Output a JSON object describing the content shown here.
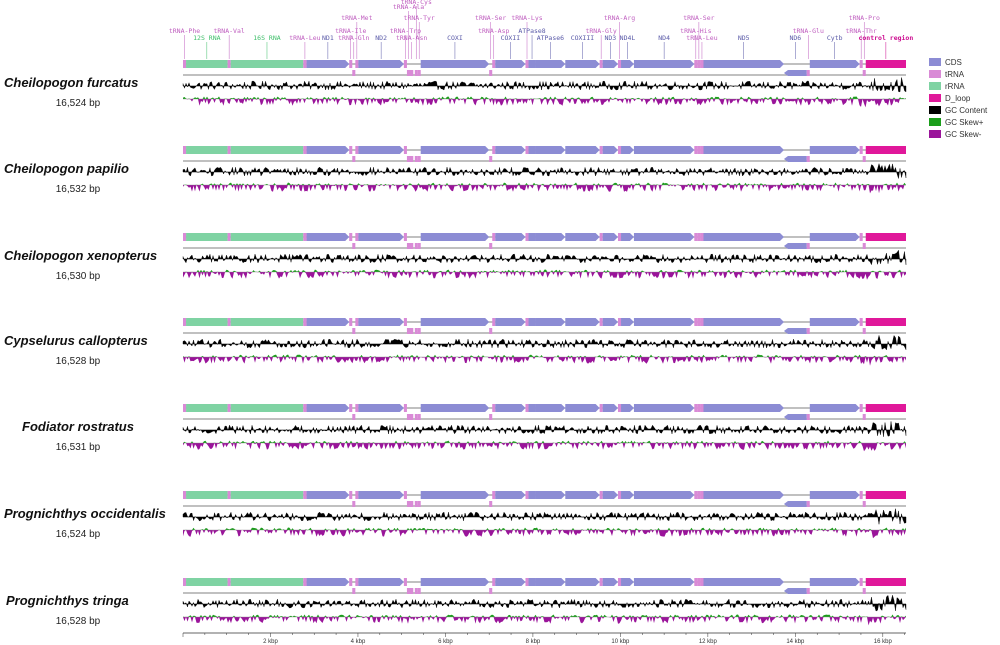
{
  "colors": {
    "cds": "#8c8cd4",
    "trna": "#d98ad6",
    "rrna": "#7fd3a3",
    "dloop": "#e0189a",
    "gc_content": "#000000",
    "gc_skew_plus": "#1a9e1a",
    "gc_skew_minus": "#9a149a",
    "trna_text": "#c060c0",
    "rrna_text": "#3fbf6a",
    "cds_text": "#5a5aa8",
    "dloop_text": "#cc0a8f"
  },
  "legend": [
    {
      "key": "cds",
      "label": "CDS"
    },
    {
      "key": "trna",
      "label": "tRNA"
    },
    {
      "key": "rrna",
      "label": "rRNA"
    },
    {
      "key": "dloop",
      "label": "D_loop"
    },
    {
      "key": "gc_content",
      "label": "GC Content"
    },
    {
      "key": "gc_skew_plus",
      "label": "GC Skew+"
    },
    {
      "key": "gc_skew_minus",
      "label": "GC Skew-"
    }
  ],
  "species": [
    {
      "name": "Cheilopogon furcatus",
      "length": "16,524 bp"
    },
    {
      "name": "Cheilopogon papilio",
      "length": "16,532 bp"
    },
    {
      "name": "Cheilopogon xenopterus",
      "length": "16,530 bp"
    },
    {
      "name": "Cypselurus callopterus",
      "length": "16,528 bp"
    },
    {
      "name": "Fodiator rostratus",
      "length": "16,531 bp"
    },
    {
      "name": "Prognichthys occidentalis",
      "length": "16,524 bp"
    },
    {
      "name": "Prognichthys tringa",
      "length": "16,528 bp"
    }
  ],
  "genome_length": 16530,
  "axis": {
    "ticks": [
      {
        "kb": 2,
        "label": "2 kbp"
      },
      {
        "kb": 4,
        "label": "4 kbp"
      },
      {
        "kb": 6,
        "label": "6 kbp"
      },
      {
        "kb": 8,
        "label": "8 kbp"
      },
      {
        "kb": 10,
        "label": "10 kbp"
      },
      {
        "kb": 12,
        "label": "12 kbp"
      },
      {
        "kb": 14,
        "label": "14 kbp"
      },
      {
        "kb": 16,
        "label": "16 kbp"
      }
    ]
  },
  "features": [
    {
      "name": "tRNA-Phe",
      "type": "trna",
      "start": 0,
      "end": 70,
      "strand": "+",
      "label_row": 1
    },
    {
      "name": "12S RNA",
      "type": "rrna",
      "start": 70,
      "end": 1020,
      "strand": "+",
      "label_row": 2
    },
    {
      "name": "tRNA-Val",
      "type": "trna",
      "start": 1020,
      "end": 1090,
      "strand": "+",
      "label_row": 1
    },
    {
      "name": "16S RNA",
      "type": "rrna",
      "start": 1090,
      "end": 2750,
      "strand": "+",
      "label_row": 2
    },
    {
      "name": "tRNA-Leu",
      "type": "trna",
      "start": 2750,
      "end": 2825,
      "strand": "+",
      "label_row": 2
    },
    {
      "name": "ND1",
      "type": "cds",
      "start": 2825,
      "end": 3800,
      "strand": "+",
      "label_row": 2
    },
    {
      "name": "tRNA-Ile",
      "type": "trna",
      "start": 3800,
      "end": 3870,
      "strand": "+",
      "label_row": 1
    },
    {
      "name": "tRNA-Gln",
      "type": "trna",
      "start": 3870,
      "end": 3940,
      "strand": "-",
      "label_row": 2
    },
    {
      "name": "tRNA-Met",
      "type": "trna",
      "start": 3940,
      "end": 4010,
      "strand": "+",
      "label_row": 0
    },
    {
      "name": "ND2",
      "type": "cds",
      "start": 4010,
      "end": 5050,
      "strand": "+",
      "label_row": 2
    },
    {
      "name": "tRNA-Trp",
      "type": "trna",
      "start": 5050,
      "end": 5120,
      "strand": "+",
      "label_row": 1
    },
    {
      "name": "tRNA-Ala",
      "type": "trna",
      "start": 5120,
      "end": 5190,
      "strand": "-",
      "label_row": -2
    },
    {
      "name": "tRNA-Asn",
      "type": "trna",
      "start": 5190,
      "end": 5265,
      "strand": "-",
      "label_row": 2
    },
    {
      "name": "tRNA-Cys",
      "type": "trna",
      "start": 5300,
      "end": 5365,
      "strand": "-",
      "label_row": -3
    },
    {
      "name": "tRNA-Tyr",
      "type": "trna",
      "start": 5365,
      "end": 5435,
      "strand": "-",
      "label_row": 0
    },
    {
      "name": "COXI",
      "type": "cds",
      "start": 5435,
      "end": 7000,
      "strand": "+",
      "label_row": 2
    },
    {
      "name": "tRNA-Ser",
      "type": "trna",
      "start": 7000,
      "end": 7070,
      "strand": "-",
      "label_row": 0
    },
    {
      "name": "tRNA-Asp",
      "type": "trna",
      "start": 7070,
      "end": 7140,
      "strand": "+",
      "label_row": 1
    },
    {
      "name": "COXII",
      "type": "cds",
      "start": 7140,
      "end": 7830,
      "strand": "+",
      "label_row": 2
    },
    {
      "name": "tRNA-Lys",
      "type": "trna",
      "start": 7830,
      "end": 7900,
      "strand": "+",
      "label_row": 0
    },
    {
      "name": "ATPase8",
      "type": "cds",
      "start": 7900,
      "end": 8060,
      "strand": "+",
      "label_row": 1
    },
    {
      "name": "ATPase6",
      "type": "cds",
      "start": 8060,
      "end": 8740,
      "strand": "+",
      "label_row": 2
    },
    {
      "name": "COXIII",
      "type": "cds",
      "start": 8740,
      "end": 9525,
      "strand": "+",
      "label_row": 2
    },
    {
      "name": "tRNA-Gly",
      "type": "trna",
      "start": 9525,
      "end": 9595,
      "strand": "+",
      "label_row": 1
    },
    {
      "name": "ND3",
      "type": "cds",
      "start": 9595,
      "end": 9945,
      "strand": "+",
      "label_row": 2
    },
    {
      "name": "tRNA-Arg",
      "type": "trna",
      "start": 9945,
      "end": 10015,
      "strand": "+",
      "label_row": 0
    },
    {
      "name": "ND4L",
      "type": "cds",
      "start": 10015,
      "end": 10310,
      "strand": "+",
      "label_row": 2
    },
    {
      "name": "ND4",
      "type": "cds",
      "start": 10310,
      "end": 11690,
      "strand": "+",
      "label_row": 2
    },
    {
      "name": "tRNA-His",
      "type": "trna",
      "start": 11690,
      "end": 11760,
      "strand": "+",
      "label_row": 1
    },
    {
      "name": "tRNA-Ser",
      "type": "trna",
      "start": 11760,
      "end": 11830,
      "strand": "+",
      "label_row": 0
    },
    {
      "name": "tRNA-Leu",
      "type": "trna",
      "start": 11830,
      "end": 11900,
      "strand": "+",
      "label_row": 2
    },
    {
      "name": "ND5",
      "type": "cds",
      "start": 11900,
      "end": 13740,
      "strand": "+",
      "label_row": 2
    },
    {
      "name": "ND6",
      "type": "cds",
      "start": 13740,
      "end": 14260,
      "strand": "-",
      "label_row": 2
    },
    {
      "name": "tRNA-Glu",
      "type": "trna",
      "start": 14260,
      "end": 14330,
      "strand": "-",
      "label_row": 1
    },
    {
      "name": "Cytb",
      "type": "cds",
      "start": 14330,
      "end": 15470,
      "strand": "+",
      "label_row": 2
    },
    {
      "name": "tRNA-Thr",
      "type": "trna",
      "start": 15470,
      "end": 15540,
      "strand": "+",
      "label_row": 1
    },
    {
      "name": "tRNA-Pro",
      "type": "trna",
      "start": 15540,
      "end": 15610,
      "strand": "-",
      "label_row": 0
    },
    {
      "name": "control region",
      "type": "dloop",
      "start": 15610,
      "end": 16530,
      "strand": "+",
      "label_row": 2
    }
  ]
}
